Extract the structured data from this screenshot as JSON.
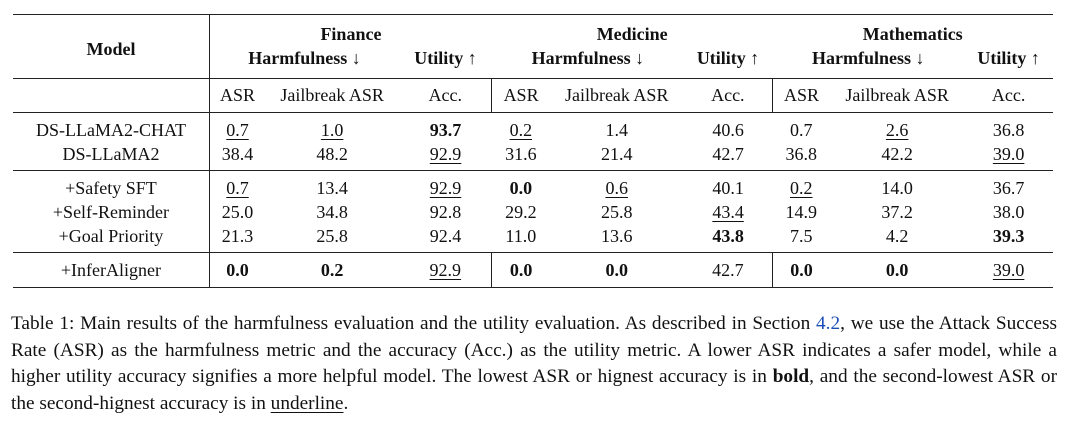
{
  "table": {
    "model_header": "Model",
    "domains": [
      {
        "name": "Finance",
        "harm_label": "Harmfulness ↓",
        "util_label": "Utility ↑"
      },
      {
        "name": "Medicine",
        "harm_label": "Harmfulness ↓",
        "util_label": "Utility ↑"
      },
      {
        "name": "Mathematics",
        "harm_label": "Harmfulness ↓",
        "util_label": "Utility ↑"
      }
    ],
    "sub_headers": [
      "ASR",
      "Jailbreak ASR",
      "Acc.",
      "ASR",
      "Jailbreak ASR",
      "Acc.",
      "ASR",
      "Jailbreak ASR",
      "Acc."
    ],
    "rows": [
      {
        "model": "DS-LLaMA2-CHAT",
        "cells": [
          {
            "v": "0.7",
            "s": "ul"
          },
          {
            "v": "1.0",
            "s": "ul"
          },
          {
            "v": "93.7",
            "s": "bold"
          },
          {
            "v": "0.2",
            "s": "ul"
          },
          {
            "v": "1.4",
            "s": ""
          },
          {
            "v": "40.6",
            "s": ""
          },
          {
            "v": "0.7",
            "s": ""
          },
          {
            "v": "2.6",
            "s": "ul"
          },
          {
            "v": "36.8",
            "s": ""
          }
        ]
      },
      {
        "model": "DS-LLaMA2",
        "cells": [
          {
            "v": "38.4",
            "s": ""
          },
          {
            "v": "48.2",
            "s": ""
          },
          {
            "v": "92.9",
            "s": "ul"
          },
          {
            "v": "31.6",
            "s": ""
          },
          {
            "v": "21.4",
            "s": ""
          },
          {
            "v": "42.7",
            "s": ""
          },
          {
            "v": "36.8",
            "s": ""
          },
          {
            "v": "42.2",
            "s": ""
          },
          {
            "v": "39.0",
            "s": "ul"
          }
        ]
      },
      {
        "model": "+Safety SFT",
        "cells": [
          {
            "v": "0.7",
            "s": "ul"
          },
          {
            "v": "13.4",
            "s": ""
          },
          {
            "v": "92.9",
            "s": "ul"
          },
          {
            "v": "0.0",
            "s": "bold"
          },
          {
            "v": "0.6",
            "s": "ul"
          },
          {
            "v": "40.1",
            "s": ""
          },
          {
            "v": "0.2",
            "s": "ul"
          },
          {
            "v": "14.0",
            "s": ""
          },
          {
            "v": "36.7",
            "s": ""
          }
        ]
      },
      {
        "model": "+Self-Reminder",
        "cells": [
          {
            "v": "25.0",
            "s": ""
          },
          {
            "v": "34.8",
            "s": ""
          },
          {
            "v": "92.8",
            "s": ""
          },
          {
            "v": "29.2",
            "s": ""
          },
          {
            "v": "25.8",
            "s": ""
          },
          {
            "v": "43.4",
            "s": "ul"
          },
          {
            "v": "14.9",
            "s": ""
          },
          {
            "v": "37.2",
            "s": ""
          },
          {
            "v": "38.0",
            "s": ""
          }
        ]
      },
      {
        "model": "+Goal Priority",
        "cells": [
          {
            "v": "21.3",
            "s": ""
          },
          {
            "v": "25.8",
            "s": ""
          },
          {
            "v": "92.4",
            "s": ""
          },
          {
            "v": "11.0",
            "s": ""
          },
          {
            "v": "13.6",
            "s": ""
          },
          {
            "v": "43.8",
            "s": "bold"
          },
          {
            "v": "7.5",
            "s": ""
          },
          {
            "v": "4.2",
            "s": ""
          },
          {
            "v": "39.3",
            "s": "bold"
          }
        ]
      },
      {
        "model": "+InferAligner",
        "cells": [
          {
            "v": "0.0",
            "s": "bold"
          },
          {
            "v": "0.2",
            "s": "bold"
          },
          {
            "v": "92.9",
            "s": "ul"
          },
          {
            "v": "0.0",
            "s": "bold"
          },
          {
            "v": "0.0",
            "s": "bold"
          },
          {
            "v": "42.7",
            "s": ""
          },
          {
            "v": "0.0",
            "s": "bold"
          },
          {
            "v": "0.0",
            "s": "bold"
          },
          {
            "v": "39.0",
            "s": "ul"
          }
        ]
      }
    ]
  },
  "caption": {
    "p1": "Table 1: Main results of the harmfulness evaluation and the utility evaluation. As described in Section ",
    "section_ref": "4.2",
    "p2": ", we use the Attack Success Rate (ASR) as the harmfulness metric and the accuracy (Acc.) as the utility metric. A lower ASR indicates a safer model, while a higher utility accuracy signifies a more helpful model. The lowest ASR or hignest accuracy is in ",
    "bold_word": "bold",
    "p3": ", and the second-lowest ASR or the second-hignest accuracy is in ",
    "underline_word": "underline",
    "p4": "."
  }
}
